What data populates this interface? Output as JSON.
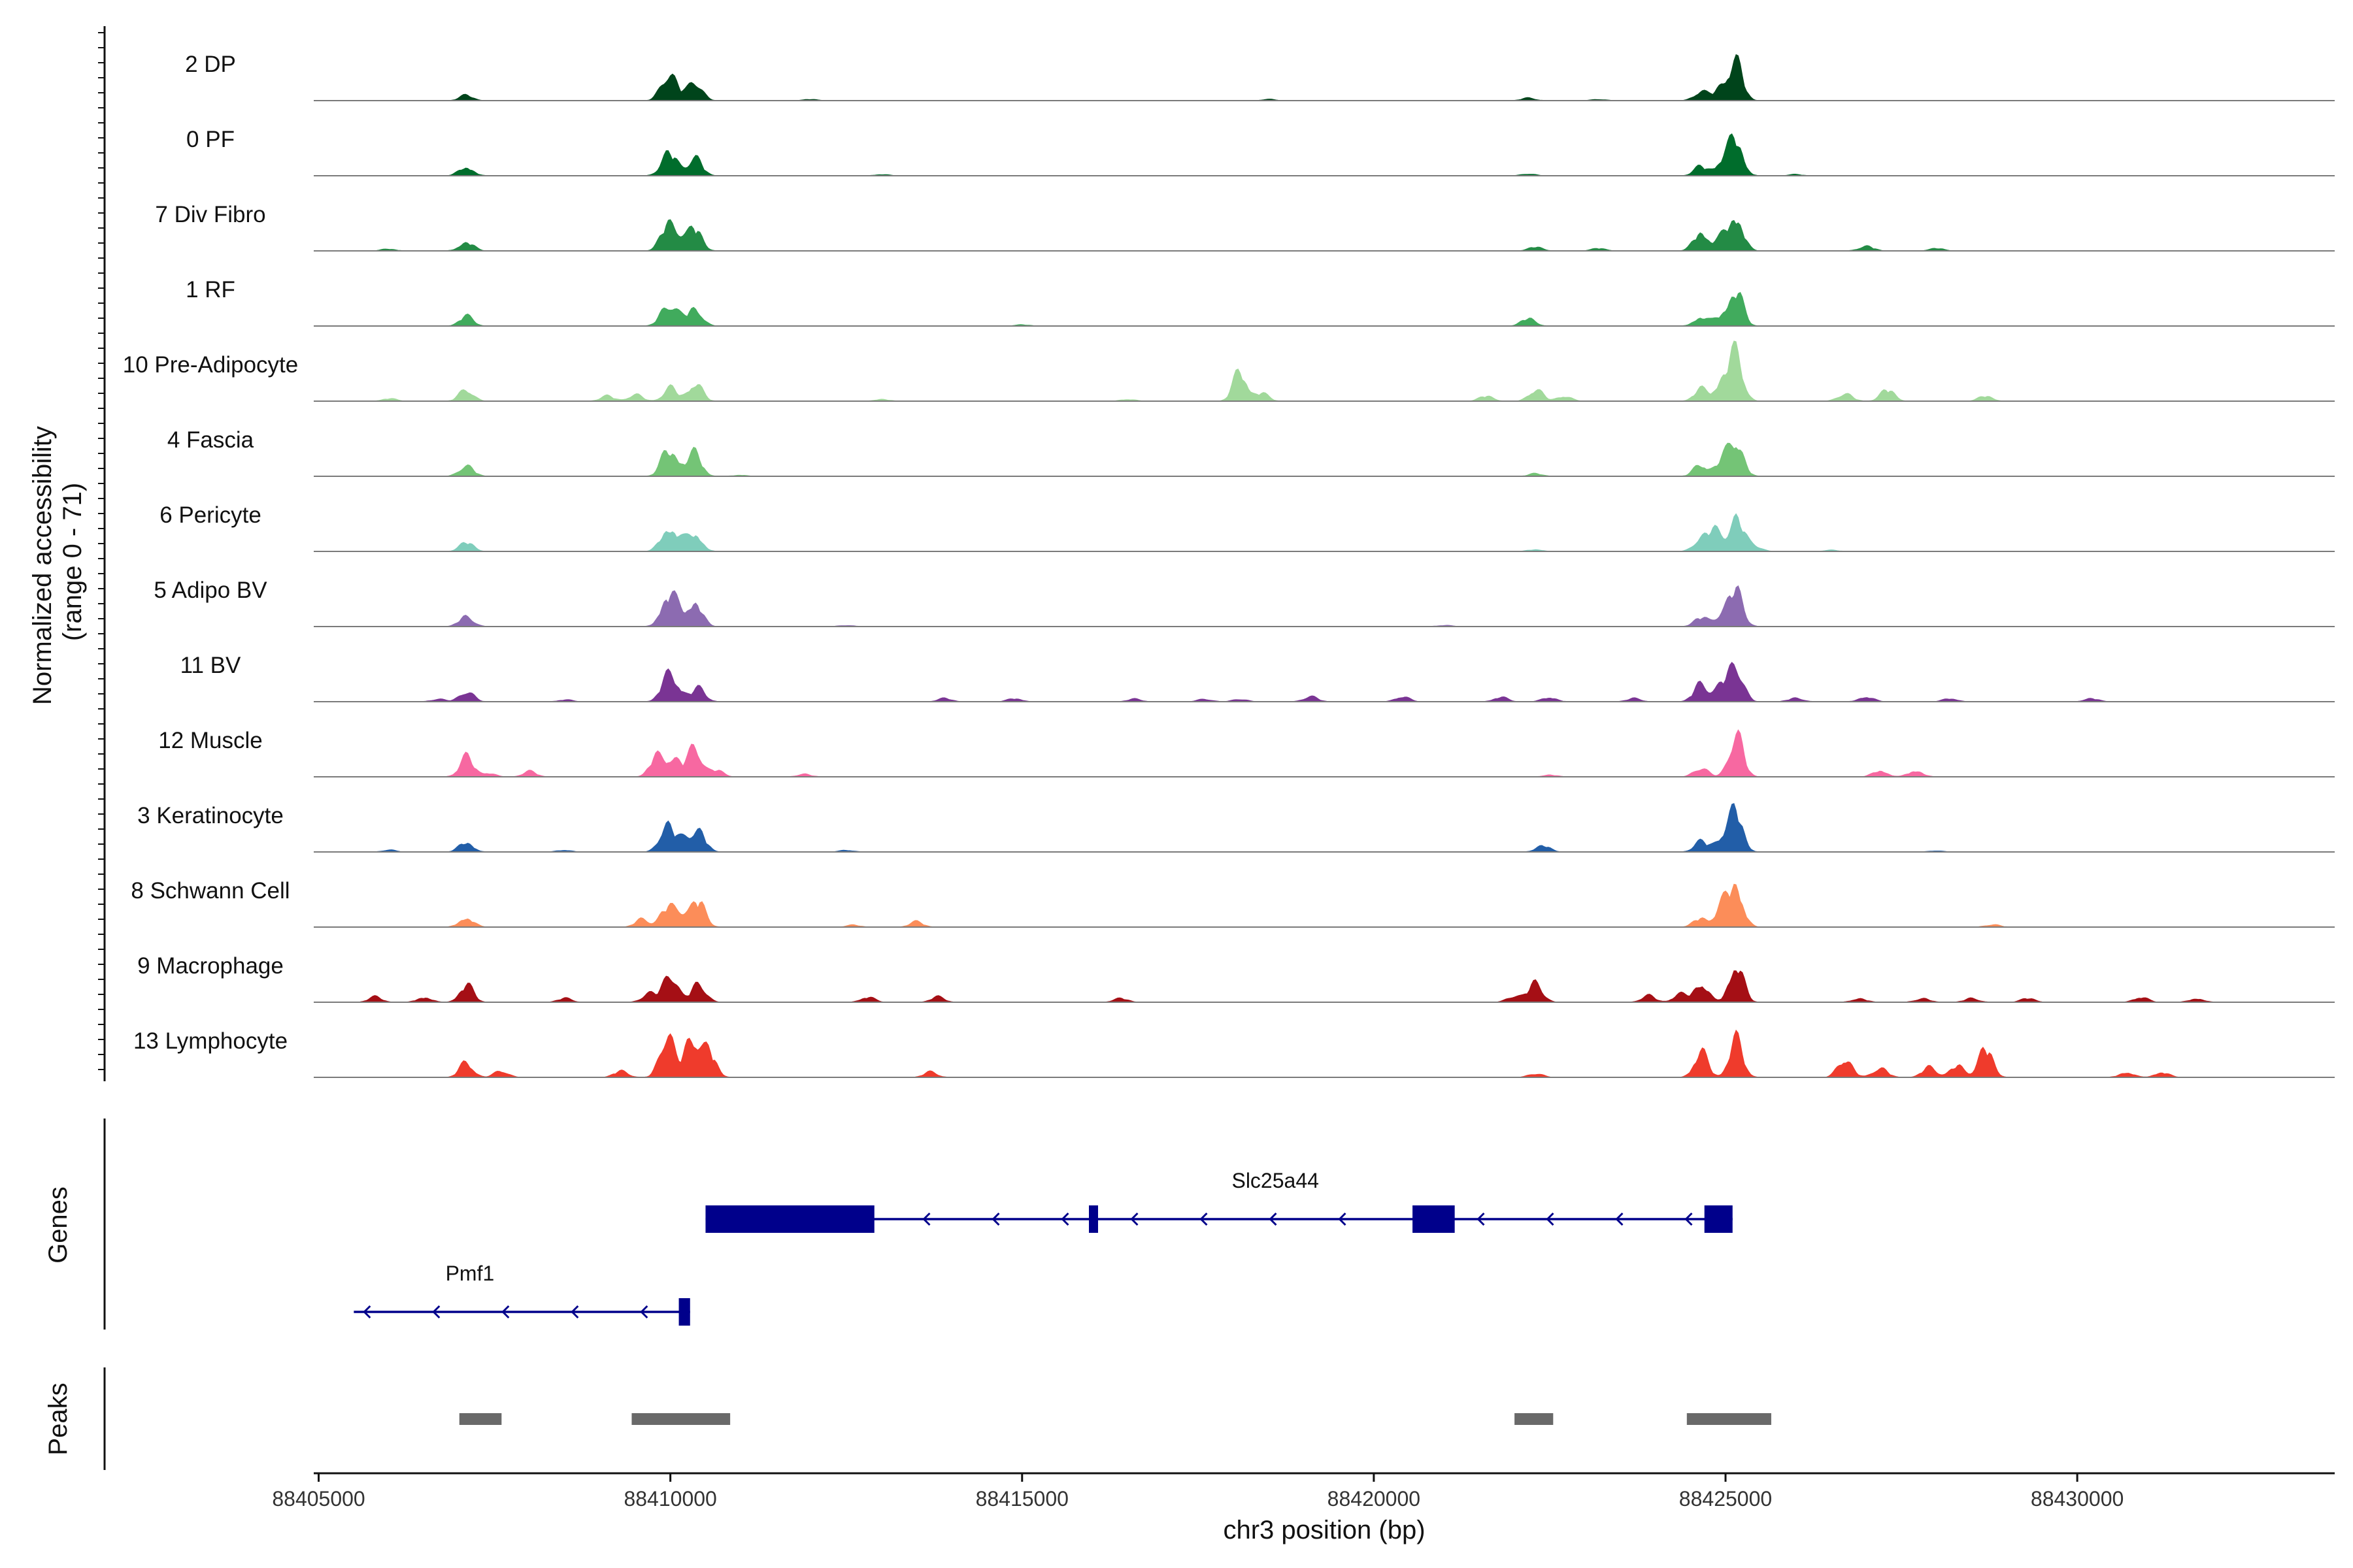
{
  "chart_data": {
    "type": "area",
    "title": "",
    "xlabel": "chr3 position (bp)",
    "ylabel": "Normalized accessibility\n(range 0 - 71)",
    "ylim": [
      0,
      71
    ],
    "xlim": [
      88404930,
      88433660
    ],
    "xticks": [
      88405000,
      88410000,
      88415000,
      88420000,
      88425000,
      88430000
    ],
    "xtick_labels": [
      "88405000",
      "88410000",
      "88415000",
      "88420000",
      "88425000",
      "88430000"
    ],
    "panel_labels": {
      "genes": "Genes",
      "peaks": "Peaks"
    },
    "tracks": [
      {
        "name": "2 DP",
        "color": "#00441b",
        "peaks": [
          [
            88407100,
            8
          ],
          [
            88409950,
            30
          ],
          [
            88410350,
            30
          ],
          [
            88410050,
            18
          ],
          [
            88422200,
            4
          ],
          [
            88424650,
            14
          ],
          [
            88425150,
            55
          ],
          [
            88424950,
            22
          ],
          [
            88412000,
            2
          ],
          [
            88418500,
            2
          ],
          [
            88423200,
            2
          ]
        ]
      },
      {
        "name": "0 PF",
        "color": "#006d2c",
        "peaks": [
          [
            88407100,
            14
          ],
          [
            88409950,
            26
          ],
          [
            88410350,
            28
          ],
          [
            88410050,
            14
          ],
          [
            88422200,
            3
          ],
          [
            88424650,
            14
          ],
          [
            88425150,
            55
          ],
          [
            88424950,
            22
          ],
          [
            88413000,
            2
          ],
          [
            88426000,
            2
          ]
        ]
      },
      {
        "name": "7 Div Fibro",
        "color": "#238b45",
        "peaks": [
          [
            88407100,
            14
          ],
          [
            88409950,
            34
          ],
          [
            88410350,
            35
          ],
          [
            88410100,
            22
          ],
          [
            88422300,
            6
          ],
          [
            88423200,
            4
          ],
          [
            88424650,
            30
          ],
          [
            88425150,
            54
          ],
          [
            88424950,
            18
          ],
          [
            88427000,
            8
          ],
          [
            88428000,
            4
          ],
          [
            88406000,
            3
          ]
        ]
      },
      {
        "name": "1 RF",
        "color": "#41ab5d",
        "peaks": [
          [
            88407100,
            15
          ],
          [
            88409950,
            30
          ],
          [
            88410350,
            28
          ],
          [
            88410100,
            12
          ],
          [
            88422200,
            12
          ],
          [
            88424650,
            14
          ],
          [
            88425150,
            52
          ],
          [
            88424950,
            15
          ],
          [
            88415000,
            2
          ]
        ]
      },
      {
        "name": "10 Pre-Adipocyte",
        "color": "#a1d99b",
        "peaks": [
          [
            88407100,
            18
          ],
          [
            88409500,
            10
          ],
          [
            88410000,
            20
          ],
          [
            88410350,
            28
          ],
          [
            88409100,
            8
          ],
          [
            88418100,
            45
          ],
          [
            88418400,
            12
          ],
          [
            88421600,
            8
          ],
          [
            88422300,
            18
          ],
          [
            88422700,
            8
          ],
          [
            88424650,
            18
          ],
          [
            88425150,
            70
          ],
          [
            88424950,
            30
          ],
          [
            88426700,
            12
          ],
          [
            88427300,
            18
          ],
          [
            88428700,
            8
          ],
          [
            88406000,
            4
          ],
          [
            88413000,
            3
          ],
          [
            88416500,
            3
          ]
        ]
      },
      {
        "name": "4 Fascia",
        "color": "#74c476",
        "peaks": [
          [
            88407100,
            17
          ],
          [
            88409950,
            32
          ],
          [
            88410350,
            34
          ],
          [
            88410100,
            18
          ],
          [
            88422300,
            4
          ],
          [
            88424650,
            18
          ],
          [
            88425150,
            56
          ],
          [
            88424950,
            22
          ],
          [
            88411000,
            2
          ]
        ]
      },
      {
        "name": "6 Pericyte",
        "color": "#7fcdbb",
        "peaks": [
          [
            88407100,
            14
          ],
          [
            88409950,
            30
          ],
          [
            88410350,
            28
          ],
          [
            88410100,
            18
          ],
          [
            88422300,
            3
          ],
          [
            88424650,
            20
          ],
          [
            88425150,
            52
          ],
          [
            88424850,
            30
          ],
          [
            88425400,
            10
          ],
          [
            88426500,
            2
          ]
        ]
      },
      {
        "name": "5 Adipo BV",
        "color": "#8c6bb1",
        "peaks": [
          [
            88407100,
            16
          ],
          [
            88409950,
            42
          ],
          [
            88410350,
            38
          ],
          [
            88410100,
            22
          ],
          [
            88424650,
            14
          ],
          [
            88425150,
            55
          ],
          [
            88424950,
            18
          ],
          [
            88412500,
            2
          ],
          [
            88421000,
            2
          ]
        ]
      },
      {
        "name": "11 BV",
        "color": "#7a3494",
        "peaks": [
          [
            88407100,
            16
          ],
          [
            88409950,
            32
          ],
          [
            88410400,
            20
          ],
          [
            88410100,
            20
          ],
          [
            88406700,
            4
          ],
          [
            88408500,
            3
          ],
          [
            88413900,
            5
          ],
          [
            88414900,
            5
          ],
          [
            88416600,
            4
          ],
          [
            88417600,
            4
          ],
          [
            88419100,
            8
          ],
          [
            88420400,
            8
          ],
          [
            88421800,
            7
          ],
          [
            88422500,
            7
          ],
          [
            88423700,
            5
          ],
          [
            88424650,
            28
          ],
          [
            88425150,
            55
          ],
          [
            88424950,
            24
          ],
          [
            88426000,
            6
          ],
          [
            88427000,
            8
          ],
          [
            88428200,
            5
          ],
          [
            88430200,
            5
          ],
          [
            88418100,
            4
          ]
        ]
      },
      {
        "name": "12 Muscle",
        "color": "#f768a1",
        "peaks": [
          [
            88407100,
            30
          ],
          [
            88408000,
            8
          ],
          [
            88409800,
            30
          ],
          [
            88410050,
            30
          ],
          [
            88410350,
            45
          ],
          [
            88410650,
            10
          ],
          [
            88422500,
            3
          ],
          [
            88424650,
            14
          ],
          [
            88425150,
            65
          ],
          [
            88427200,
            10
          ],
          [
            88427700,
            10
          ],
          [
            88411900,
            4
          ],
          [
            88407400,
            6
          ]
        ]
      },
      {
        "name": "3 Keratinocyte",
        "color": "#225ea8",
        "peaks": [
          [
            88407100,
            15
          ],
          [
            88409950,
            44
          ],
          [
            88410400,
            32
          ],
          [
            88410200,
            18
          ],
          [
            88422400,
            10
          ],
          [
            88424650,
            16
          ],
          [
            88425150,
            60
          ],
          [
            88424950,
            22
          ],
          [
            88406000,
            3
          ],
          [
            88408500,
            3
          ],
          [
            88412500,
            3
          ],
          [
            88428000,
            2
          ]
        ]
      },
      {
        "name": "8 Schwann Cell",
        "color": "#fc8d59",
        "peaks": [
          [
            88407100,
            15
          ],
          [
            88409950,
            28
          ],
          [
            88410400,
            40
          ],
          [
            88410150,
            22
          ],
          [
            88409600,
            12
          ],
          [
            88413500,
            8
          ],
          [
            88424650,
            14
          ],
          [
            88424950,
            30
          ],
          [
            88425150,
            65
          ],
          [
            88428800,
            4
          ],
          [
            88412600,
            3
          ]
        ]
      },
      {
        "name": "9 Macrophage",
        "color": "#a50f15",
        "peaks": [
          [
            88407100,
            26
          ],
          [
            88405800,
            8
          ],
          [
            88406500,
            8
          ],
          [
            88408500,
            6
          ],
          [
            88409700,
            14
          ],
          [
            88410000,
            45
          ],
          [
            88410400,
            30
          ],
          [
            88412800,
            8
          ],
          [
            88413800,
            8
          ],
          [
            88416400,
            6
          ],
          [
            88422300,
            30
          ],
          [
            88422000,
            10
          ],
          [
            88423900,
            10
          ],
          [
            88424650,
            30
          ],
          [
            88425150,
            60
          ],
          [
            88424350,
            12
          ],
          [
            88426900,
            6
          ],
          [
            88427800,
            6
          ],
          [
            88428500,
            6
          ],
          [
            88429300,
            6
          ],
          [
            88430900,
            8
          ],
          [
            88431700,
            6
          ]
        ]
      },
      {
        "name": "13 Lymphocyte",
        "color": "#ef3b2c",
        "peaks": [
          [
            88407100,
            22
          ],
          [
            88407600,
            10
          ],
          [
            88409300,
            10
          ],
          [
            88409950,
            68
          ],
          [
            88410300,
            65
          ],
          [
            88410550,
            40
          ],
          [
            88413700,
            8
          ],
          [
            88422300,
            6
          ],
          [
            88424650,
            38
          ],
          [
            88425150,
            56
          ],
          [
            88426700,
            30
          ],
          [
            88427200,
            15
          ],
          [
            88427900,
            16
          ],
          [
            88428700,
            45
          ],
          [
            88428300,
            18
          ],
          [
            88430700,
            8
          ],
          [
            88431200,
            8
          ]
        ]
      }
    ],
    "genes": [
      {
        "name": "Slc25a44",
        "strand": "-",
        "start": 88410500,
        "end": 88425100,
        "exons": [
          [
            88410500,
            88412900
          ],
          [
            88415950,
            88416080
          ],
          [
            88420550,
            88421150
          ],
          [
            88424700,
            88425100
          ]
        ]
      },
      {
        "name": "Pmf1",
        "strand": "-",
        "start": 88405500,
        "end": 88410280,
        "exons": [
          [
            88410120,
            88410280
          ]
        ]
      }
    ],
    "peak_regions": [
      [
        88407000,
        88407600
      ],
      [
        88409450,
        88410850
      ],
      [
        88422000,
        88422550
      ],
      [
        88424450,
        88425650
      ]
    ]
  }
}
